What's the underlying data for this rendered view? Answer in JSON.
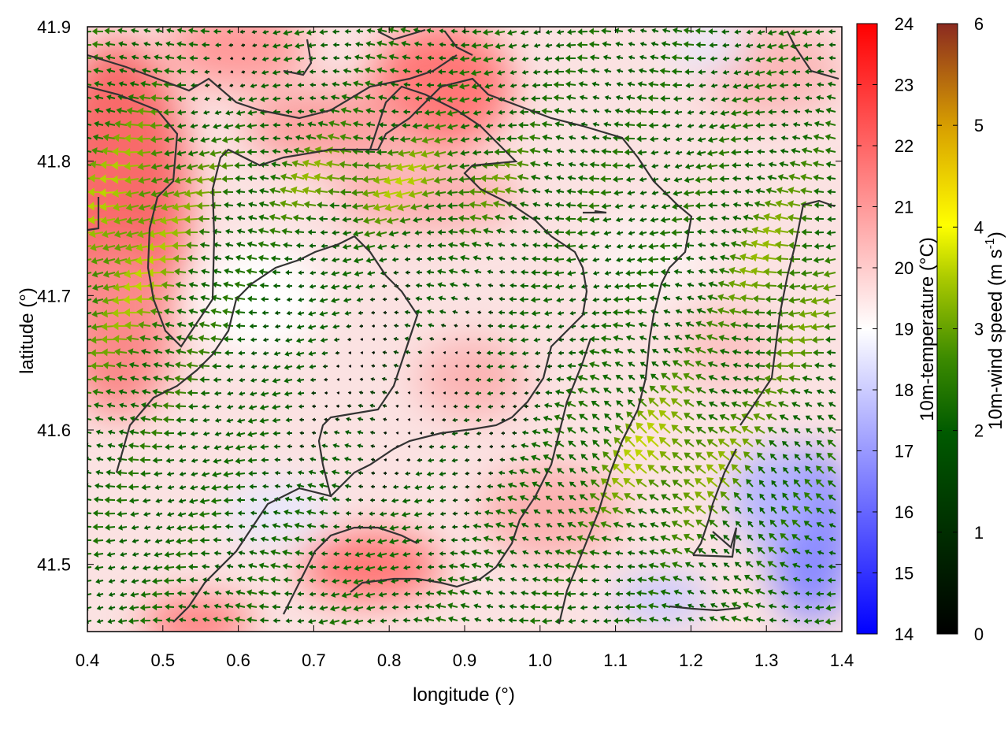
{
  "axes": {
    "xlabel": "longitude (°)",
    "ylabel": "latitude (°)",
    "xlim": [
      0.4,
      1.4
    ],
    "ylim": [
      41.45,
      41.9
    ],
    "xticks": [
      "0.4",
      "0.5",
      "0.6",
      "0.7",
      "0.8",
      "0.9",
      "1.0",
      "1.1",
      "1.2",
      "1.3",
      "1.4"
    ],
    "yticks": [
      "41.5",
      "41.6",
      "41.7",
      "41.8",
      "41.9"
    ]
  },
  "temperature_scale": {
    "label": "10m-temperature (°C)",
    "min": 14,
    "max": 24,
    "ticks": [
      "14",
      "15",
      "16",
      "17",
      "18",
      "19",
      "20",
      "21",
      "22",
      "23",
      "24"
    ],
    "colors": [
      "#0000ff",
      "#ffffff",
      "#ff0000"
    ]
  },
  "wind_scale": {
    "label_main": "10m-wind speed (m s",
    "label_sup": "-1",
    "label_end": ")",
    "min": 0,
    "max": 6,
    "ticks": [
      "0",
      "1",
      "2",
      "3",
      "4",
      "5",
      "6"
    ],
    "colors": [
      "#000000",
      "#005a00",
      "#1e7a00",
      "#7aaa00",
      "#ffff00",
      "#d8a000",
      "#8b2a20"
    ]
  },
  "map_style": {
    "contour_color": "#333333",
    "background": "#ffffff"
  }
}
